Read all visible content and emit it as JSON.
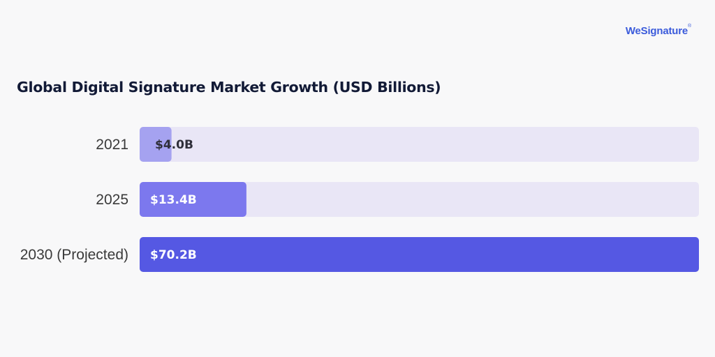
{
  "brand": {
    "name": "WeSignature",
    "mark": "®",
    "color": "#3b5bdb"
  },
  "chart_data": {
    "type": "bar",
    "orientation": "horizontal",
    "title": "Global Digital Signature Market Growth (USD Billions)",
    "categories": [
      "2021",
      "2025",
      "2030 (Projected)"
    ],
    "values": [
      4.0,
      13.4,
      70.2
    ],
    "value_labels": [
      "$4.0B",
      "$13.4B",
      "$70.2B"
    ],
    "xlim": [
      0,
      70.2
    ],
    "grid": false,
    "bar_colors": [
      "#a5a2f0",
      "#7c78ee",
      "#5558e3"
    ],
    "track_color": "#e9e6f6",
    "label_colors": [
      "#2f2f3a",
      "#ffffff",
      "#ffffff"
    ]
  }
}
